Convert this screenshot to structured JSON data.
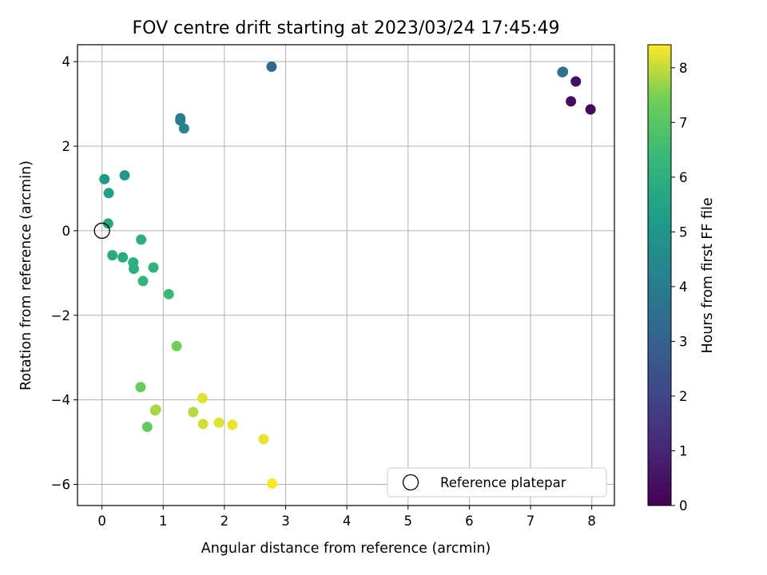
{
  "chart_data": {
    "type": "scatter",
    "title": "FOV centre drift starting at 2023/03/24 17:45:49",
    "xlabel": "Angular distance from reference (arcmin)",
    "ylabel": "Rotation from reference (arcmin)",
    "xlim": [
      -0.4,
      8.37
    ],
    "ylim": [
      -6.5,
      4.4
    ],
    "xticks": [
      0,
      1,
      2,
      3,
      4,
      5,
      6,
      7,
      8
    ],
    "yticks": [
      -6,
      -4,
      -2,
      0,
      2,
      4
    ],
    "xtick_labels": [
      "0",
      "1",
      "2",
      "3",
      "4",
      "5",
      "6",
      "7",
      "8"
    ],
    "ytick_labels": [
      "−6",
      "−4",
      "−2",
      "0",
      "2",
      "4"
    ],
    "grid": true,
    "colormap": "viridis",
    "colorbar": {
      "label": "Hours from first FF file",
      "range": [
        0,
        8.42
      ],
      "ticks": [
        0,
        1,
        2,
        3,
        4,
        5,
        6,
        7,
        8
      ],
      "tick_labels": [
        "0",
        "1",
        "2",
        "3",
        "4",
        "5",
        "6",
        "7",
        "8"
      ]
    },
    "legend": {
      "placement": "lower right",
      "entries": [
        {
          "label": "Reference platepar",
          "marker": "open-circle"
        }
      ]
    },
    "reference_point": {
      "x": 0,
      "y": 0
    },
    "points": [
      {
        "x": 7.98,
        "y": 2.87,
        "c": 0.2
      },
      {
        "x": 7.66,
        "y": 3.06,
        "c": 0.3
      },
      {
        "x": 7.74,
        "y": 3.53,
        "c": 0.4
      },
      {
        "x": 7.53,
        "y": 3.76,
        "c": 3.4
      },
      {
        "x": 7.52,
        "y": 3.75,
        "c": 3.5
      },
      {
        "x": 2.77,
        "y": 3.88,
        "c": 3.2
      },
      {
        "x": 1.28,
        "y": 2.66,
        "c": 4.0
      },
      {
        "x": 1.28,
        "y": 2.61,
        "c": 4.1
      },
      {
        "x": 1.34,
        "y": 2.42,
        "c": 4.2
      },
      {
        "x": 0.37,
        "y": 1.31,
        "c": 5.0
      },
      {
        "x": 0.04,
        "y": 1.22,
        "c": 5.2
      },
      {
        "x": 0.11,
        "y": 0.89,
        "c": 5.4
      },
      {
        "x": 0.1,
        "y": 0.17,
        "c": 5.6
      },
      {
        "x": 0.64,
        "y": -0.21,
        "c": 6.0
      },
      {
        "x": 0.17,
        "y": -0.58,
        "c": 5.7
      },
      {
        "x": 0.34,
        "y": -0.63,
        "c": 5.8
      },
      {
        "x": 0.51,
        "y": -0.75,
        "c": 6.0
      },
      {
        "x": 0.52,
        "y": -0.9,
        "c": 6.0
      },
      {
        "x": 0.84,
        "y": -0.87,
        "c": 6.1
      },
      {
        "x": 0.67,
        "y": -1.19,
        "c": 6.2
      },
      {
        "x": 1.09,
        "y": -1.5,
        "c": 6.4
      },
      {
        "x": 1.22,
        "y": -2.73,
        "c": 7.4
      },
      {
        "x": 0.63,
        "y": -3.7,
        "c": 7.3
      },
      {
        "x": 0.87,
        "y": -4.25,
        "c": 7.7
      },
      {
        "x": 0.88,
        "y": -4.23,
        "c": 7.8
      },
      {
        "x": 0.74,
        "y": -4.64,
        "c": 7.2
      },
      {
        "x": 1.49,
        "y": -4.29,
        "c": 7.9
      },
      {
        "x": 1.64,
        "y": -3.96,
        "c": 8.2
      },
      {
        "x": 1.65,
        "y": -4.57,
        "c": 8.1
      },
      {
        "x": 1.91,
        "y": -4.54,
        "c": 8.2
      },
      {
        "x": 2.13,
        "y": -4.59,
        "c": 8.3
      },
      {
        "x": 2.64,
        "y": -4.93,
        "c": 8.3
      },
      {
        "x": 2.78,
        "y": -5.98,
        "c": 8.4
      }
    ]
  }
}
